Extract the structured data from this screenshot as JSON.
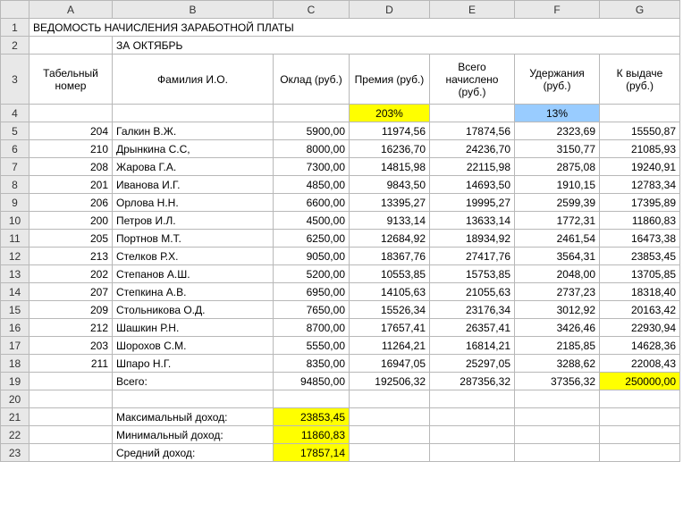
{
  "columns": [
    "A",
    "B",
    "C",
    "D",
    "E",
    "F",
    "G"
  ],
  "title": "ВЕДОМОСТЬ НАЧИСЛЕНИЯ ЗАРАБОТНОЙ ПЛАТЫ",
  "subtitle": "ЗА ОКТЯБРЬ",
  "headers": {
    "A": "Табельный номер",
    "B": "Фамилия И.О.",
    "C": "Оклад (руб.)",
    "D": "Премия (руб.)",
    "E": "Всего начислено (руб.)",
    "F": "Удержания (руб.)",
    "G": "К выдаче (руб.)"
  },
  "pct": {
    "premium": "203%",
    "tax": "13%"
  },
  "rows": [
    {
      "n": "204",
      "name": "Галкин В.Ж.",
      "c": "5900,00",
      "d": "11974,56",
      "e": "17874,56",
      "f": "2323,69",
      "g": "15550,87"
    },
    {
      "n": "210",
      "name": "Дрынкина С.С,",
      "c": "8000,00",
      "d": "16236,70",
      "e": "24236,70",
      "f": "3150,77",
      "g": "21085,93"
    },
    {
      "n": "208",
      "name": "Жарова Г.А.",
      "c": "7300,00",
      "d": "14815,98",
      "e": "22115,98",
      "f": "2875,08",
      "g": "19240,91"
    },
    {
      "n": "201",
      "name": "Иванова И.Г.",
      "c": "4850,00",
      "d": "9843,50",
      "e": "14693,50",
      "f": "1910,15",
      "g": "12783,34"
    },
    {
      "n": "206",
      "name": "Орлова Н.Н.",
      "c": "6600,00",
      "d": "13395,27",
      "e": "19995,27",
      "f": "2599,39",
      "g": "17395,89"
    },
    {
      "n": "200",
      "name": "Петров И.Л.",
      "c": "4500,00",
      "d": "9133,14",
      "e": "13633,14",
      "f": "1772,31",
      "g": "11860,83"
    },
    {
      "n": "205",
      "name": "Портнов М.Т.",
      "c": "6250,00",
      "d": "12684,92",
      "e": "18934,92",
      "f": "2461,54",
      "g": "16473,38"
    },
    {
      "n": "213",
      "name": "Стелков Р.Х.",
      "c": "9050,00",
      "d": "18367,76",
      "e": "27417,76",
      "f": "3564,31",
      "g": "23853,45"
    },
    {
      "n": "202",
      "name": "Степанов А.Ш.",
      "c": "5200,00",
      "d": "10553,85",
      "e": "15753,85",
      "f": "2048,00",
      "g": "13705,85"
    },
    {
      "n": "207",
      "name": "Степкина А.В.",
      "c": "6950,00",
      "d": "14105,63",
      "e": "21055,63",
      "f": "2737,23",
      "g": "18318,40"
    },
    {
      "n": "209",
      "name": "Стольникова О.Д.",
      "c": "7650,00",
      "d": "15526,34",
      "e": "23176,34",
      "f": "3012,92",
      "g": "20163,42"
    },
    {
      "n": "212",
      "name": "Шашкин Р.Н.",
      "c": "8700,00",
      "d": "17657,41",
      "e": "26357,41",
      "f": "3426,46",
      "g": "22930,94"
    },
    {
      "n": "203",
      "name": "Шорохов С.М.",
      "c": "5550,00",
      "d": "11264,21",
      "e": "16814,21",
      "f": "2185,85",
      "g": "14628,36"
    },
    {
      "n": "211",
      "name": "Шпаро Н.Г.",
      "c": "8350,00",
      "d": "16947,05",
      "e": "25297,05",
      "f": "3288,62",
      "g": "22008,43"
    }
  ],
  "total": {
    "label": "Всего:",
    "c": "94850,00",
    "d": "192506,32",
    "e": "287356,32",
    "f": "37356,32",
    "g": "250000,00"
  },
  "stats": {
    "max": {
      "label": "Максимальный доход:",
      "val": "23853,45"
    },
    "min": {
      "label": "Минимальный доход:",
      "val": "11860,83"
    },
    "avg": {
      "label": "Средний доход:",
      "val": "17857,14"
    }
  },
  "colors": {
    "yellow": "#ffff00",
    "blue": "#99ccff",
    "hdr": "#e8e8e8",
    "grid": "#b8b8b8"
  }
}
